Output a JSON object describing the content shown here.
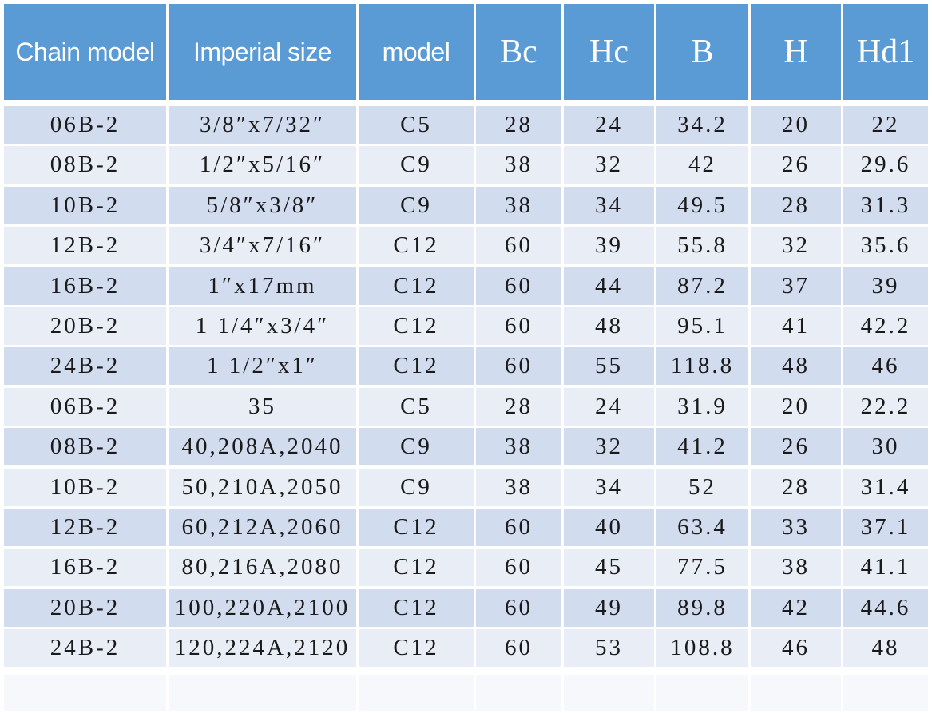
{
  "table": {
    "header": [
      "Chain model",
      "Imperial size",
      "model",
      "Bc",
      "Hc",
      "B",
      "H",
      "Hd1"
    ],
    "rows": [
      [
        "06B-2",
        "3/8″x7/32″",
        "C5",
        "28",
        "24",
        "34.2",
        "20",
        "22"
      ],
      [
        "08B-2",
        "1/2″x5/16″",
        "C9",
        "38",
        "32",
        "42",
        "26",
        "29.6"
      ],
      [
        "10B-2",
        "5/8″x3/8″",
        "C9",
        "38",
        "34",
        "49.5",
        "28",
        "31.3"
      ],
      [
        "12B-2",
        "3/4″x7/16″",
        "C12",
        "60",
        "39",
        "55.8",
        "32",
        "35.6"
      ],
      [
        "16B-2",
        "1″x17mm",
        "C12",
        "60",
        "44",
        "87.2",
        "37",
        "39"
      ],
      [
        "20B-2",
        "1 1/4″x3/4″",
        "C12",
        "60",
        "48",
        "95.1",
        "41",
        "42.2"
      ],
      [
        "24B-2",
        "1 1/2″x1″",
        "C12",
        "60",
        "55",
        "118.8",
        "48",
        "46"
      ],
      [
        "06B-2",
        "35",
        "C5",
        "28",
        "24",
        "31.9",
        "20",
        "22.2"
      ],
      [
        "08B-2",
        "40,208A,2040",
        "C9",
        "38",
        "32",
        "41.2",
        "26",
        "30"
      ],
      [
        "10B-2",
        "50,210A,2050",
        "C9",
        "38",
        "34",
        "52",
        "28",
        "31.4"
      ],
      [
        "12B-2",
        "60,212A,2060",
        "C12",
        "60",
        "40",
        "63.4",
        "33",
        "37.1"
      ],
      [
        "16B-2",
        "80,216A,2080",
        "C12",
        "60",
        "45",
        "77.5",
        "38",
        "41.1"
      ],
      [
        "20B-2",
        "100,220A,2100",
        "C12",
        "60",
        "49",
        "89.8",
        "42",
        "44.6"
      ],
      [
        "24B-2",
        "120,224A,2120",
        "C12",
        "60",
        "53",
        "108.8",
        "46",
        "48"
      ]
    ]
  }
}
